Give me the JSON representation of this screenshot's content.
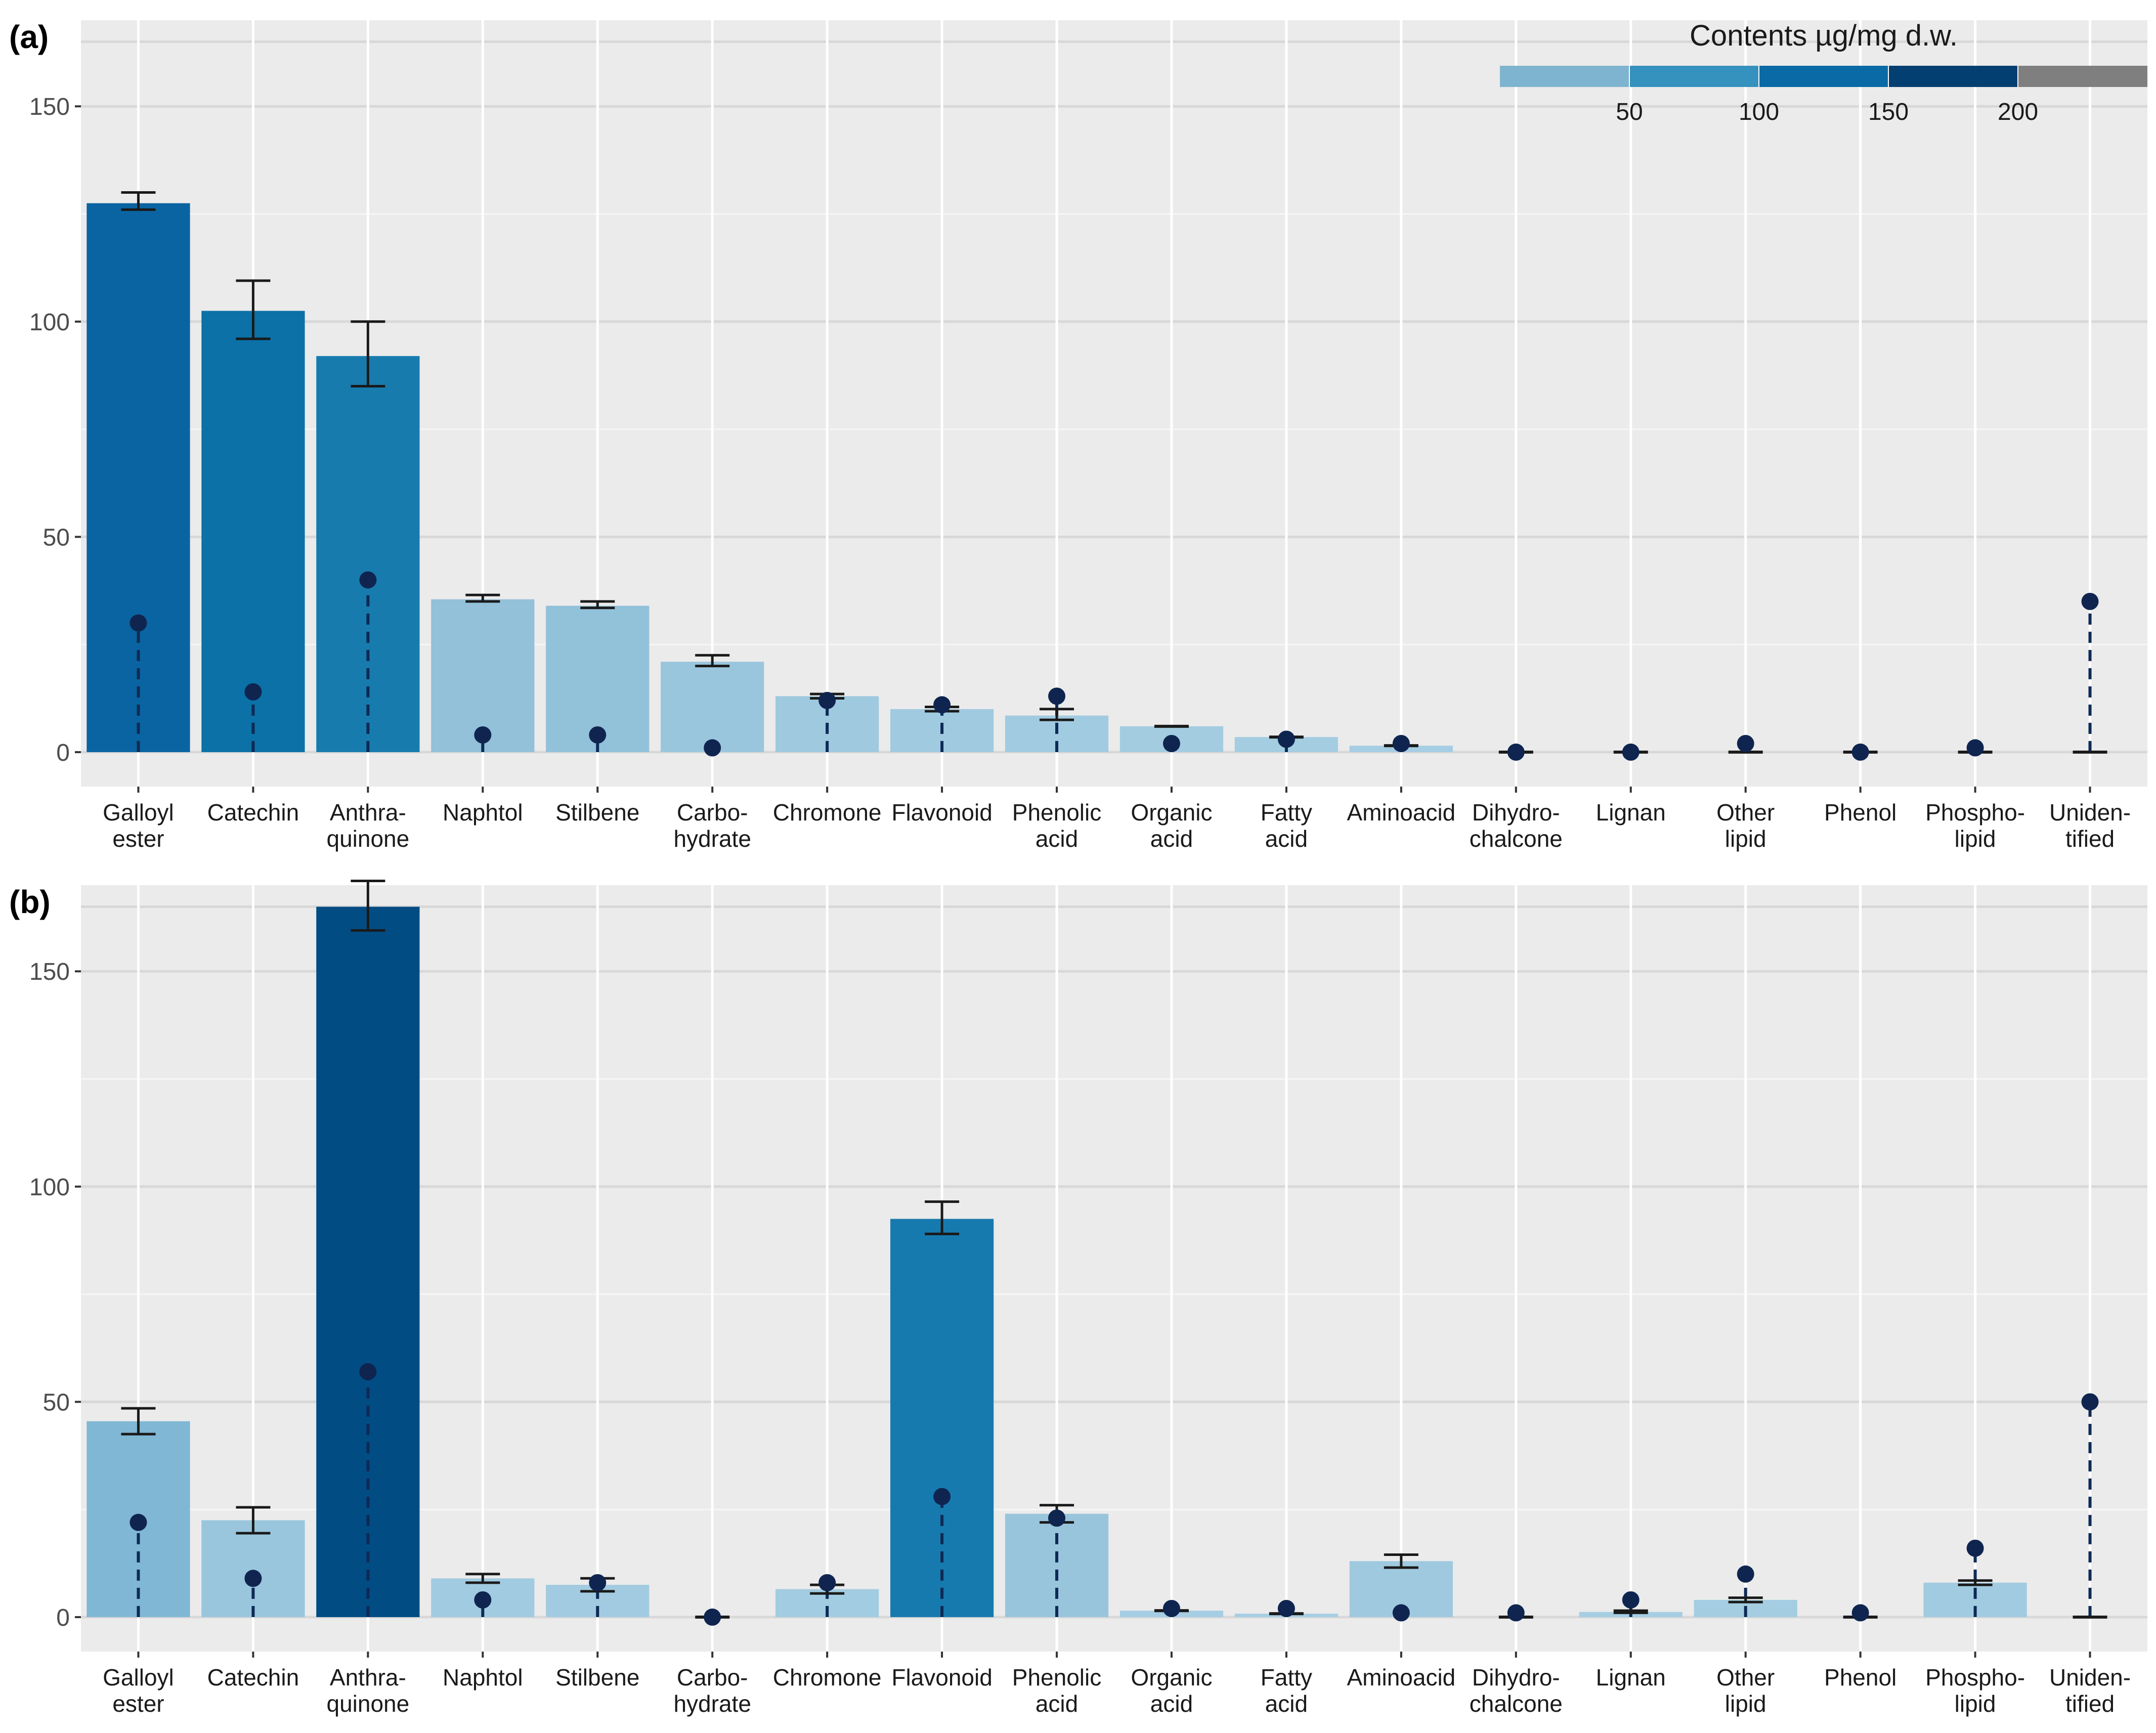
{
  "legend": {
    "title": "Contents µg/mg d.w.",
    "ticks": [
      "50",
      "100",
      "150",
      "200"
    ],
    "tick_values": [
      50,
      100,
      150,
      200
    ],
    "range": [
      0,
      250
    ],
    "colors": [
      "#7fb4d0",
      "#3591bd",
      "#0a6aa6",
      "#033f71",
      "#7f7f7f"
    ]
  },
  "chart_data": [
    {
      "type": "bar",
      "panel": "(a)",
      "title": "",
      "xlabel": "",
      "ylabel": "",
      "ylim": [
        -8,
        170
      ],
      "yticks": [
        "0",
        "50",
        "100",
        "150"
      ],
      "ytick_values": [
        0,
        50,
        100,
        150
      ],
      "categories": [
        "Galloyl ester",
        "Catechin",
        "Anthra-quinone",
        "Naphtol",
        "Stilbene",
        "Carbo-hydrate",
        "Chromone",
        "Flavonoid",
        "Phenolic acid",
        "Organic acid",
        "Fatty acid",
        "Aminoacid",
        "Dihydro-chalcone",
        "Lignan",
        "Other lipid",
        "Phenol",
        "Phospho-lipid",
        "Uniden-tified"
      ],
      "category_lines": [
        [
          "Galloyl",
          "ester"
        ],
        [
          "Catechin",
          ""
        ],
        [
          "Anthra-",
          "quinone"
        ],
        [
          "Naphtol",
          ""
        ],
        [
          "Stilbene",
          ""
        ],
        [
          "Carbo-",
          "hydrate"
        ],
        [
          "Chromone",
          ""
        ],
        [
          "Flavonoid",
          ""
        ],
        [
          "Phenolic",
          "acid"
        ],
        [
          "Organic",
          "acid"
        ],
        [
          "Fatty",
          "acid"
        ],
        [
          "Aminoacid",
          ""
        ],
        [
          "Dihydro-",
          "chalcone"
        ],
        [
          "Lignan",
          ""
        ],
        [
          "Other",
          "lipid"
        ],
        [
          "Phenol",
          ""
        ],
        [
          "Phospho-",
          "lipid"
        ],
        [
          "Uniden-",
          "tified"
        ]
      ],
      "series": [
        {
          "name": "Contents (bars)",
          "values": [
            127.5,
            102.5,
            92.0,
            35.5,
            34.0,
            21.0,
            13.0,
            10.0,
            8.5,
            6.0,
            3.5,
            1.5,
            0,
            0,
            0,
            0,
            0,
            0
          ],
          "err_low": [
            126,
            96,
            85,
            35,
            33.5,
            20,
            12.5,
            9.5,
            7.5,
            6,
            3.5,
            1.5,
            0,
            0,
            0,
            0,
            0,
            0
          ],
          "err_high": [
            130,
            109.5,
            100,
            36.5,
            35,
            22.5,
            13.5,
            10.5,
            10,
            6,
            3.5,
            1.5,
            0,
            0,
            0,
            0,
            0,
            0
          ]
        },
        {
          "name": "Points",
          "values": [
            30,
            14,
            40,
            4,
            4,
            1,
            12,
            11,
            13,
            2,
            3,
            2,
            0,
            0,
            2,
            0,
            1,
            35
          ]
        }
      ]
    },
    {
      "type": "bar",
      "panel": "(b)",
      "title": "",
      "xlabel": "",
      "ylabel": "",
      "ylim": [
        -8,
        170
      ],
      "yticks": [
        "0",
        "50",
        "100",
        "150"
      ],
      "ytick_values": [
        0,
        50,
        100,
        150
      ],
      "categories": [
        "Galloyl ester",
        "Catechin",
        "Anthra-quinone",
        "Naphtol",
        "Stilbene",
        "Carbo-hydrate",
        "Chromone",
        "Flavonoid",
        "Phenolic acid",
        "Organic acid",
        "Fatty acid",
        "Aminoacid",
        "Dihydro-chalcone",
        "Lignan",
        "Other lipid",
        "Phenol",
        "Phospho-lipid",
        "Uniden-tified"
      ],
      "category_lines": [
        [
          "Galloyl",
          "ester"
        ],
        [
          "Catechin",
          ""
        ],
        [
          "Anthra-",
          "quinone"
        ],
        [
          "Naphtol",
          ""
        ],
        [
          "Stilbene",
          ""
        ],
        [
          "Carbo-",
          "hydrate"
        ],
        [
          "Chromone",
          ""
        ],
        [
          "Flavonoid",
          ""
        ],
        [
          "Phenolic",
          "acid"
        ],
        [
          "Organic",
          "acid"
        ],
        [
          "Fatty",
          "acid"
        ],
        [
          "Aminoacid",
          ""
        ],
        [
          "Dihydro-",
          "chalcone"
        ],
        [
          "Lignan",
          ""
        ],
        [
          "Other",
          "lipid"
        ],
        [
          "Phenol",
          ""
        ],
        [
          "Phospho-",
          "lipid"
        ],
        [
          "Uniden-",
          "tified"
        ]
      ],
      "series": [
        {
          "name": "Contents (bars)",
          "values": [
            45.5,
            22.5,
            165.0,
            9.0,
            7.5,
            0,
            6.5,
            92.5,
            24.0,
            1.5,
            0.8,
            13.0,
            0,
            1.2,
            4.0,
            0,
            8.0,
            0
          ],
          "err_low": [
            42.5,
            19.5,
            159.5,
            8,
            6,
            0,
            5.5,
            89,
            22,
            1.5,
            0.8,
            11.5,
            0,
            1,
            3.5,
            0,
            7.5,
            0
          ],
          "err_high": [
            48.5,
            25.5,
            171,
            10,
            9,
            0,
            7.5,
            96.5,
            26,
            1.5,
            0.8,
            14.5,
            0,
            1.5,
            4.5,
            0,
            8.5,
            0
          ]
        },
        {
          "name": "Points",
          "values": [
            22,
            9,
            57,
            4,
            8,
            0,
            8,
            28,
            23,
            2,
            2,
            1,
            1,
            4,
            10,
            1,
            16,
            50
          ]
        }
      ]
    }
  ]
}
